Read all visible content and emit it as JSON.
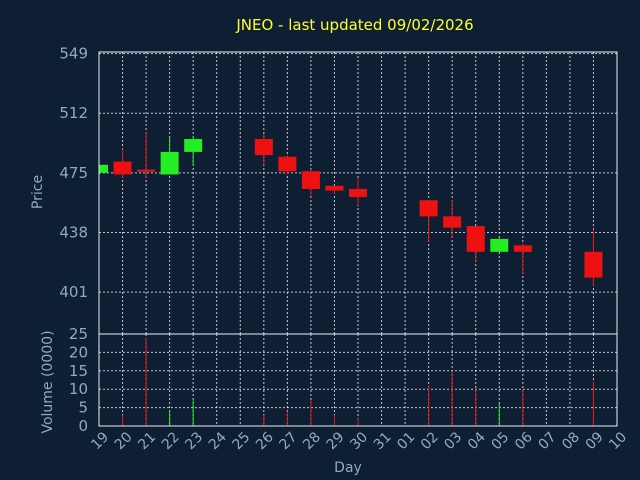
{
  "chart_data": {
    "type": "candlestick",
    "title": "JNEO - last updated 09/02/2026",
    "ylabel": "Price",
    "volume_label": "Volume (0000)",
    "xlabel": "Day",
    "price_ticks": [
      401,
      438,
      475,
      512,
      549
    ],
    "price_range": [
      375,
      550
    ],
    "volume_ticks": [
      0,
      5,
      10,
      15,
      20,
      25
    ],
    "volume_range": [
      0,
      25
    ],
    "x_labels": [
      "19",
      "20",
      "21",
      "22",
      "23",
      "24",
      "25",
      "26",
      "27",
      "28",
      "29",
      "30",
      "31",
      "01",
      "02",
      "03",
      "04",
      "05",
      "06",
      "07",
      "08",
      "09",
      "10"
    ],
    "colors": {
      "up": "#22ee22",
      "down": "#ee1111",
      "title": "#ffff33",
      "axis_text": "#8fa9c6",
      "background": "#0f1f33"
    },
    "candles": [
      {
        "day": "19",
        "open": 475,
        "high": 480,
        "low": 475,
        "close": 480,
        "volume": 0
      },
      {
        "day": "20",
        "open": 482,
        "high": 490,
        "low": 472,
        "close": 474,
        "volume": 3
      },
      {
        "day": "21",
        "open": 477,
        "high": 500,
        "low": 472,
        "close": 476,
        "volume": 24
      },
      {
        "day": "22",
        "open": 474,
        "high": 497,
        "low": 474,
        "close": 488,
        "volume": 4
      },
      {
        "day": "23",
        "open": 488,
        "high": 498,
        "low": 480,
        "close": 496,
        "volume": 7
      },
      {
        "day": "26",
        "open": 496,
        "high": 499,
        "low": 480,
        "close": 486,
        "volume": 3
      },
      {
        "day": "27",
        "open": 485,
        "high": 486,
        "low": 474,
        "close": 476,
        "volume": 4
      },
      {
        "day": "28",
        "open": 476,
        "high": 477,
        "low": 461,
        "close": 465,
        "volume": 7
      },
      {
        "day": "29",
        "open": 467,
        "high": 467,
        "low": 462,
        "close": 464,
        "volume": 3
      },
      {
        "day": "30",
        "open": 465,
        "high": 472,
        "low": 455,
        "close": 460,
        "volume": 2
      },
      {
        "day": "02",
        "open": 458,
        "high": 458,
        "low": 432,
        "close": 448,
        "volume": 11
      },
      {
        "day": "03",
        "open": 448,
        "high": 458,
        "low": 435,
        "close": 441,
        "volume": 15
      },
      {
        "day": "04",
        "open": 442,
        "high": 442,
        "low": 420,
        "close": 426,
        "volume": 10
      },
      {
        "day": "05",
        "open": 426,
        "high": 435,
        "low": 426,
        "close": 434,
        "volume": 6
      },
      {
        "day": "06",
        "open": 430,
        "high": 431,
        "low": 412,
        "close": 426,
        "volume": 10
      },
      {
        "day": "09",
        "open": 426,
        "high": 440,
        "low": 405,
        "close": 410,
        "volume": 12
      }
    ]
  }
}
